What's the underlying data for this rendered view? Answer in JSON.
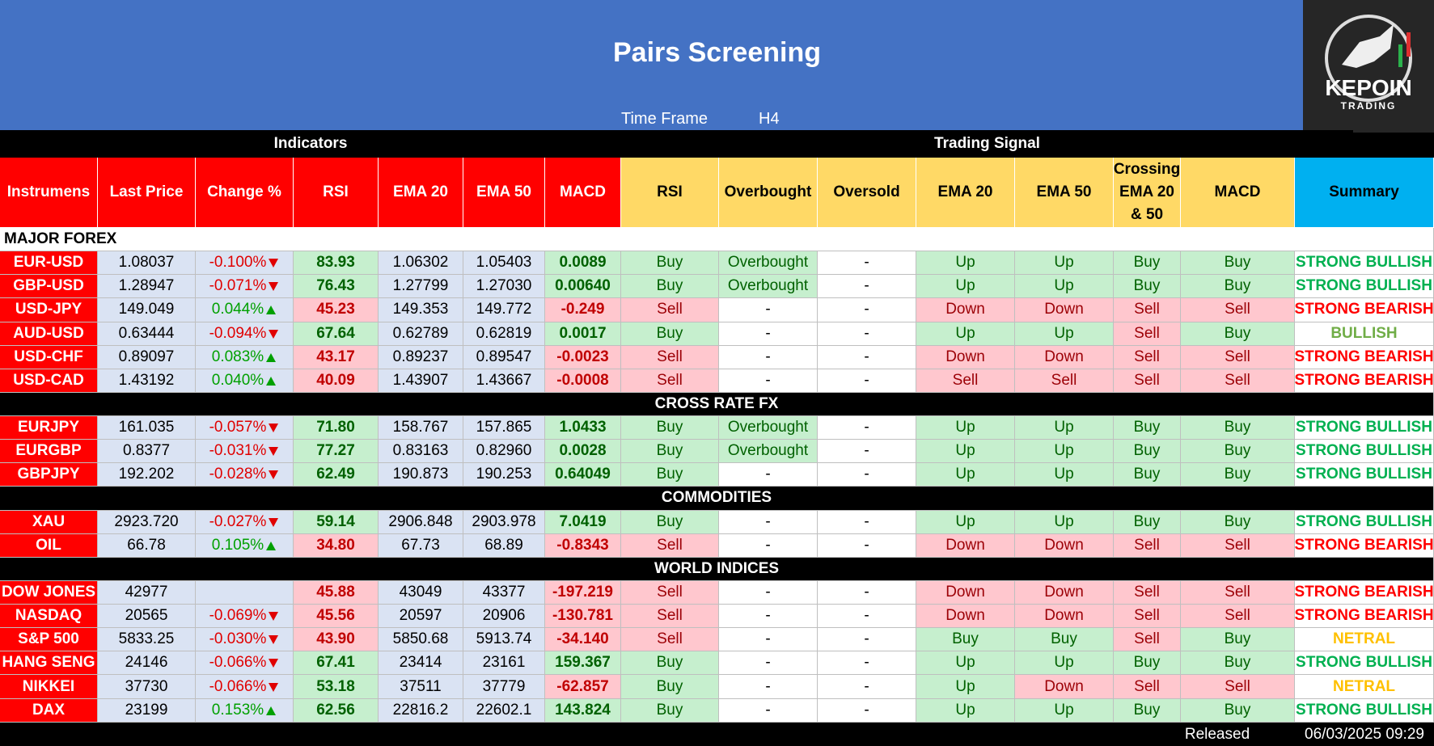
{
  "header": {
    "title": "Pairs Screening",
    "time_frame_label": "Time Frame",
    "time_frame": "H4",
    "logo": "KEPOIN",
    "logo_sub": "TRADING"
  },
  "groups": [
    "Indicators",
    "Trading Signal"
  ],
  "columns": [
    {
      "label": "Instrumens",
      "color": "#ff0000"
    },
    {
      "label": "Last Price",
      "color": "#ff0000"
    },
    {
      "label": "Change %",
      "color": "#ff0000"
    },
    {
      "label": "RSI",
      "color": "#ff0000"
    },
    {
      "label": "EMA 20",
      "color": "#ff0000"
    },
    {
      "label": "EMA 50",
      "color": "#ff0000"
    },
    {
      "label": "MACD",
      "color": "#ff0000"
    },
    {
      "label": "RSI",
      "color": "#ffd966"
    },
    {
      "label": "Overbought",
      "color": "#ffd966"
    },
    {
      "label": "Oversold",
      "color": "#ffd966"
    },
    {
      "label": "EMA 20",
      "color": "#ffd966"
    },
    {
      "label": "EMA 50",
      "color": "#ffd966"
    },
    {
      "label": "Crossing EMA 20 & 50",
      "color": "#ffd966"
    },
    {
      "label": "MACD",
      "color": "#ffd966"
    },
    {
      "label": "Summary",
      "color": "#00b0f0"
    }
  ],
  "sections": [
    {
      "title": "MAJOR FOREX",
      "style": "light",
      "rows": [
        {
          "cells": [
            "EUR-USD",
            "1.08037",
            "-0.100%",
            "83.93",
            "1.06302",
            "1.05403",
            "0.0089",
            "Buy",
            "Overbought",
            "-",
            "Up",
            "Up",
            "Buy",
            "Buy",
            "STRONG BULLISH"
          ],
          "tones": "indGnnGggwggggB"
        },
        {
          "cells": [
            "GBP-USD",
            "1.28947",
            "-0.071%",
            "76.43",
            "1.27799",
            "1.27030",
            "0.00640",
            "Buy",
            "Overbought",
            "-",
            "Up",
            "Up",
            "Buy",
            "Buy",
            "STRONG BULLISH"
          ],
          "tones": "indGnnGggwggggB"
        },
        {
          "cells": [
            "USD-JPY",
            "149.049",
            "0.044%",
            "45.23",
            "149.353",
            "149.772",
            "-0.249",
            "Sell",
            "-",
            "-",
            "Down",
            "Down",
            "Sell",
            "Sell",
            "STRONG BEARISH"
          ],
          "tones": "inuXnnXrwwrrrrR"
        },
        {
          "cells": [
            "AUD-USD",
            "0.63444",
            "-0.094%",
            "67.64",
            "0.62789",
            "0.62819",
            "0.0017",
            "Buy",
            "-",
            "-",
            "Up",
            "Up",
            "Sell",
            "Buy",
            "BULLISH"
          ],
          "tones": "indGnnGgwwggrgb"
        },
        {
          "cells": [
            "USD-CHF",
            "0.89097",
            "0.083%",
            "43.17",
            "0.89237",
            "0.89547",
            "-0.0023",
            "Sell",
            "-",
            "-",
            "Down",
            "Down",
            "Sell",
            "Sell",
            "STRONG BEARISH"
          ],
          "tones": "inuXnnXrwwrrrrR"
        },
        {
          "cells": [
            "USD-CAD",
            "1.43192",
            "0.040%",
            "40.09",
            "1.43907",
            "1.43667",
            "-0.0008",
            "Sell",
            "-",
            "-",
            "Sell",
            "Sell",
            "Sell",
            "Sell",
            "STRONG BEARISH"
          ],
          "tones": "inuXnnXrwwrrrrR"
        }
      ]
    },
    {
      "title": "CROSS RATE FX",
      "style": "dark",
      "rows": [
        {
          "cells": [
            "EURJPY",
            "161.035",
            "-0.057%",
            "71.80",
            "158.767",
            "157.865",
            "1.0433",
            "Buy",
            "Overbought",
            "-",
            "Up",
            "Up",
            "Buy",
            "Buy",
            "STRONG BULLISH"
          ],
          "tones": "indGnnGggwggggB"
        },
        {
          "cells": [
            "EURGBP",
            "0.8377",
            "-0.031%",
            "77.27",
            "0.83163",
            "0.82960",
            "0.0028",
            "Buy",
            "Overbought",
            "-",
            "Up",
            "Up",
            "Buy",
            "Buy",
            "STRONG BULLISH"
          ],
          "tones": "indGnnGggwggggB"
        },
        {
          "cells": [
            "GBPJPY",
            "192.202",
            "-0.028%",
            "62.49",
            "190.873",
            "190.253",
            "0.64049",
            "Buy",
            "-",
            "-",
            "Up",
            "Up",
            "Buy",
            "Buy",
            "STRONG BULLISH"
          ],
          "tones": "indGnnGgwwggggB"
        }
      ]
    },
    {
      "title": "COMMODITIES",
      "style": "dark",
      "rows": [
        {
          "cells": [
            "XAU",
            "2923.720",
            "-0.027%",
            "59.14",
            "2906.848",
            "2903.978",
            "7.0419",
            "Buy",
            "-",
            "-",
            "Up",
            "Up",
            "Buy",
            "Buy",
            "STRONG BULLISH"
          ],
          "tones": "indGnnGgwwggggB"
        },
        {
          "cells": [
            "OIL",
            "66.78",
            "0.105%",
            "34.80",
            "67.73",
            "68.89",
            "-0.8343",
            "Sell",
            "-",
            "-",
            "Down",
            "Down",
            "Sell",
            "Sell",
            "STRONG BEARISH"
          ],
          "tones": "inuXnnXrwwrrrrR"
        }
      ]
    },
    {
      "title": "WORLD INDICES",
      "style": "dark",
      "rows": [
        {
          "cells": [
            "DOW JONES",
            "42977",
            null,
            "45.88",
            "43049",
            "43377",
            "-197.219",
            "Sell",
            "-",
            "-",
            "Down",
            "Down",
            "Sell",
            "Sell",
            "STRONG BEARISH"
          ],
          "tones": "ineXnnXrwwrrrrR"
        },
        {
          "cells": [
            "NASDAQ",
            "20565",
            "-0.069%",
            "45.56",
            "20597",
            "20906",
            "-130.781",
            "Sell",
            "-",
            "-",
            "Down",
            "Down",
            "Sell",
            "Sell",
            "STRONG BEARISH"
          ],
          "tones": "indXnnXrwwrrrrR"
        },
        {
          "cells": [
            "S&P 500",
            "5833.25",
            "-0.030%",
            "43.90",
            "5850.68",
            "5913.74",
            "-34.140",
            "Sell",
            "-",
            "-",
            "Buy",
            "Buy",
            "Sell",
            "Buy",
            "NETRAL"
          ],
          "tones": "indXnnXrwwggrgY"
        },
        {
          "cells": [
            "HANG SENG",
            "24146",
            "-0.066%",
            "67.41",
            "23414",
            "23161",
            "159.367",
            "Buy",
            "-",
            "-",
            "Up",
            "Up",
            "Buy",
            "Buy",
            "STRONG BULLISH"
          ],
          "tones": "indGnnGgwwggggB"
        },
        {
          "cells": [
            "NIKKEI",
            "37730",
            "-0.066%",
            "53.18",
            "37511",
            "37779",
            "-62.857",
            "Buy",
            "-",
            "-",
            "Up",
            "Down",
            "Sell",
            "Sell",
            "NETRAL"
          ],
          "tones": "indGnnXgwwgrrrY"
        },
        {
          "cells": [
            "DAX",
            "23199",
            "0.153%",
            "62.56",
            "22816.2",
            "22602.1",
            "143.824",
            "Buy",
            "-",
            "-",
            "Up",
            "Up",
            "Buy",
            "Buy",
            "STRONG BULLISH"
          ],
          "tones": "inuGnnGgwwggggB"
        }
      ]
    }
  ],
  "footer": {
    "released_label": "Released",
    "released": "06/03/2025 09:29"
  }
}
